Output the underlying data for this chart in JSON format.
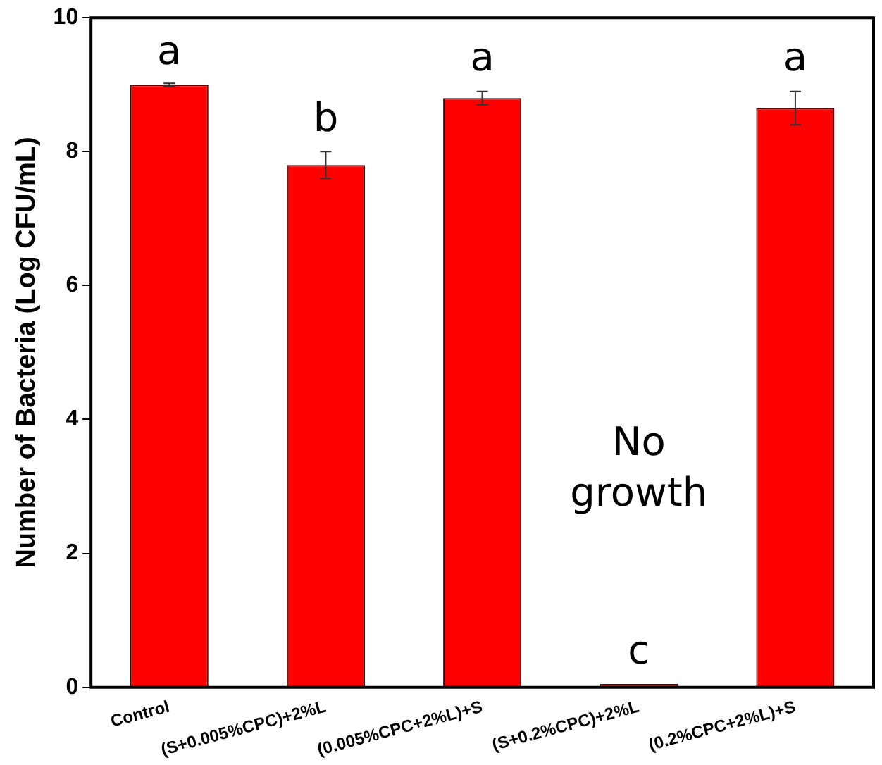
{
  "chart_data": {
    "type": "bar",
    "ylabel": "Number of Bacteria (Log CFU/mL)",
    "categories": [
      "Control",
      "(S+0.005%CPC)+2%L",
      "(0.005%CPC+2%L)+S",
      "(S+0.2%CPC)+2%L",
      "(0.2%CPC+2%L)+S"
    ],
    "values": [
      9.0,
      7.8,
      8.8,
      0.05,
      8.65
    ],
    "errors": [
      0.02,
      0.2,
      0.1,
      null,
      0.25
    ],
    "color": "#ff0000",
    "ylim": [
      0,
      10
    ],
    "yticks": [
      0,
      2,
      4,
      6,
      8,
      10
    ],
    "grid": false,
    "legend": false,
    "annotations": [
      {
        "text": "a",
        "x": "Control",
        "y": 9.0
      },
      {
        "text": "b",
        "x": "(S+0.005%CPC)+2%L",
        "y": 8.0
      },
      {
        "text": "a",
        "x": "(0.005%CPC+2%L)+S",
        "y": 8.9
      },
      "No\ngrowth",
      {
        "text": "c",
        "x": "(S+0.2%CPC)+2%L",
        "y": 0.05
      },
      {
        "text": "a",
        "x": "(0.2%CPC+2%L)+S",
        "y": 8.9
      }
    ]
  }
}
